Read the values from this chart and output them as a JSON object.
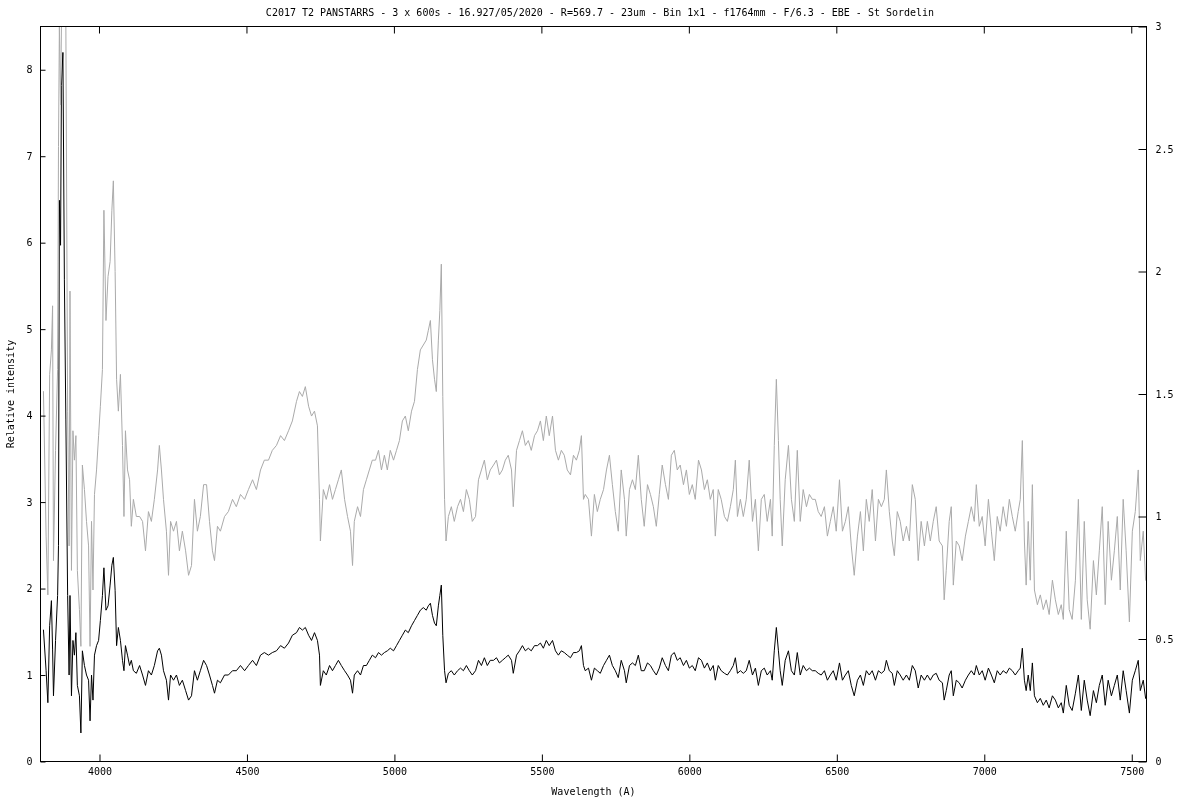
{
  "chart_data": {
    "type": "line",
    "title": "C2017 T2 PANSTARRS - 3 x 600s - 16.927/05/2020 - R=569.7 - 23um - Bin 1x1 - f1764mm - F/6.3 - EBE - St Sordelin",
    "xlabel": "Wavelength (A)",
    "ylabel": "Relative intensity",
    "xlim": [
      3800,
      7550
    ],
    "xticks": [
      4000,
      4500,
      5000,
      5500,
      6000,
      6500,
      7000,
      7500
    ],
    "ylim": [
      0,
      8.5
    ],
    "yticks": [
      0,
      1,
      2,
      3,
      4,
      5,
      6,
      7,
      8
    ],
    "y2lim": [
      0,
      3
    ],
    "y2ticks": [
      0,
      0.5,
      1,
      1.5,
      2,
      2.5,
      3
    ],
    "x": [
      3810,
      3819,
      3825,
      3831,
      3837,
      3841,
      3844,
      3851,
      3858,
      3861,
      3864,
      3868,
      3871,
      3876,
      3881,
      3886,
      3892,
      3897,
      3900,
      3905,
      3910,
      3915,
      3920,
      3925,
      3932,
      3937,
      3942,
      3949,
      3956,
      3963,
      3968,
      3973,
      3978,
      3983,
      3990,
      3997,
      4003,
      4010,
      4015,
      4022,
      4029,
      4036,
      4042,
      4047,
      4053,
      4058,
      4064,
      4071,
      4078,
      4083,
      4088,
      4095,
      4102,
      4108,
      4115,
      4125,
      4136,
      4146,
      4156,
      4166,
      4176,
      4186,
      4197,
      4203,
      4210,
      4217,
      4227,
      4234,
      4241,
      4251,
      4261,
      4271,
      4281,
      4292,
      4302,
      4312,
      4322,
      4332,
      4342,
      4353,
      4363,
      4373,
      4383,
      4390,
      4400,
      4410,
      4424,
      4437,
      4451,
      4464,
      4478,
      4492,
      4505,
      4519,
      4532,
      4546,
      4559,
      4573,
      4586,
      4600,
      4614,
      4627,
      4641,
      4654,
      4668,
      4678,
      4688,
      4698,
      4709,
      4719,
      4729,
      4739,
      4746,
      4749,
      4759,
      4769,
      4780,
      4790,
      4800,
      4810,
      4820,
      4831,
      4841,
      4851,
      4858,
      4864,
      4875,
      4885,
      4895,
      4905,
      4915,
      4925,
      4936,
      4946,
      4956,
      4966,
      4976,
      4986,
      4997,
      5007,
      5017,
      5027,
      5037,
      5047,
      5058,
      5068,
      5078,
      5088,
      5098,
      5108,
      5115,
      5122,
      5129,
      5136,
      5142,
      5149,
      5154,
      5159,
      5164,
      5170,
      5175,
      5183,
      5193,
      5203,
      5214,
      5224,
      5234,
      5244,
      5254,
      5264,
      5275,
      5285,
      5295,
      5305,
      5315,
      5325,
      5336,
      5346,
      5356,
      5366,
      5376,
      5386,
      5397,
      5403,
      5414,
      5424,
      5434,
      5444,
      5454,
      5464,
      5475,
      5485,
      5495,
      5505,
      5515,
      5525,
      5536,
      5546,
      5556,
      5566,
      5576,
      5586,
      5597,
      5607,
      5617,
      5627,
      5634,
      5641,
      5647,
      5658,
      5668,
      5678,
      5688,
      5698,
      5709,
      5719,
      5729,
      5739,
      5749,
      5759,
      5769,
      5780,
      5786,
      5797,
      5807,
      5817,
      5827,
      5837,
      5847,
      5858,
      5868,
      5878,
      5888,
      5898,
      5908,
      5919,
      5929,
      5939,
      5949,
      5959,
      5969,
      5980,
      5990,
      6000,
      6010,
      6020,
      6031,
      6041,
      6051,
      6061,
      6071,
      6081,
      6088,
      6098,
      6108,
      6119,
      6129,
      6139,
      6149,
      6156,
      6163,
      6173,
      6183,
      6193,
      6203,
      6214,
      6224,
      6234,
      6244,
      6254,
      6264,
      6275,
      6281,
      6288,
      6295,
      6302,
      6308,
      6315,
      6325,
      6336,
      6346,
      6356,
      6366,
      6376,
      6386,
      6397,
      6407,
      6417,
      6427,
      6437,
      6447,
      6458,
      6468,
      6478,
      6488,
      6498,
      6509,
      6519,
      6529,
      6539,
      6549,
      6559,
      6570,
      6580,
      6590,
      6600,
      6610,
      6620,
      6631,
      6641,
      6651,
      6661,
      6668,
      6678,
      6688,
      6695,
      6705,
      6715,
      6725,
      6736,
      6746,
      6756,
      6766,
      6776,
      6786,
      6797,
      6807,
      6817,
      6827,
      6837,
      6847,
      6858,
      6864,
      6871,
      6881,
      6888,
      6895,
      6905,
      6915,
      6925,
      6936,
      6946,
      6956,
      6966,
      6973,
      6983,
      6993,
      7003,
      7014,
      7024,
      7034,
      7044,
      7054,
      7064,
      7075,
      7085,
      7095,
      7105,
      7115,
      7122,
      7129,
      7136,
      7142,
      7149,
      7156,
      7163,
      7170,
      7180,
      7190,
      7200,
      7210,
      7220,
      7231,
      7241,
      7251,
      7261,
      7268,
      7278,
      7288,
      7298,
      7309,
      7319,
      7329,
      7339,
      7349,
      7359,
      7370,
      7380,
      7390,
      7400,
      7410,
      7420,
      7431,
      7441,
      7451,
      7461,
      7471,
      7481,
      7492,
      7502,
      7512,
      7522,
      7529,
      7539,
      7547
    ],
    "series": [
      {
        "color": "#000000",
        "values": [
          1.52,
          1.05,
          0.68,
          1.57,
          1.86,
          1.3,
          0.76,
          1.4,
          1.92,
          2.5,
          6.49,
          5.97,
          7.82,
          8.2,
          5.57,
          3.95,
          1.92,
          1.0,
          1.92,
          0.76,
          1.4,
          1.23,
          1.49,
          0.88,
          0.76,
          0.33,
          1.28,
          1.11,
          1.0,
          0.94,
          0.47,
          1.0,
          0.71,
          1.23,
          1.34,
          1.4,
          1.63,
          1.92,
          2.24,
          1.75,
          1.8,
          2.04,
          2.27,
          2.36,
          1.98,
          1.34,
          1.55,
          1.4,
          1.17,
          1.05,
          1.34,
          1.23,
          1.11,
          1.17,
          1.05,
          1.02,
          1.11,
          1.0,
          0.88,
          1.05,
          1.0,
          1.11,
          1.28,
          1.31,
          1.23,
          1.05,
          0.94,
          0.71,
          1.0,
          0.94,
          1.0,
          0.88,
          0.94,
          0.82,
          0.71,
          0.76,
          1.05,
          0.94,
          1.05,
          1.17,
          1.11,
          1.0,
          0.88,
          0.79,
          0.94,
          0.91,
          1.0,
          1.0,
          1.05,
          1.05,
          1.11,
          1.05,
          1.11,
          1.17,
          1.11,
          1.23,
          1.26,
          1.23,
          1.26,
          1.28,
          1.34,
          1.31,
          1.37,
          1.46,
          1.49,
          1.55,
          1.52,
          1.55,
          1.46,
          1.4,
          1.49,
          1.4,
          1.23,
          0.88,
          1.05,
          1.0,
          1.11,
          1.05,
          1.11,
          1.17,
          1.11,
          1.05,
          1.0,
          0.94,
          0.79,
          1.0,
          1.05,
          1.0,
          1.11,
          1.11,
          1.17,
          1.23,
          1.2,
          1.26,
          1.23,
          1.26,
          1.28,
          1.31,
          1.28,
          1.34,
          1.4,
          1.46,
          1.52,
          1.49,
          1.57,
          1.63,
          1.69,
          1.75,
          1.78,
          1.75,
          1.8,
          1.83,
          1.69,
          1.6,
          1.57,
          1.8,
          1.92,
          2.04,
          1.46,
          1.05,
          0.91,
          1.02,
          1.05,
          1.0,
          1.05,
          1.08,
          1.05,
          1.11,
          1.05,
          1.0,
          1.05,
          1.17,
          1.11,
          1.2,
          1.11,
          1.17,
          1.17,
          1.2,
          1.14,
          1.17,
          1.2,
          1.23,
          1.17,
          1.02,
          1.23,
          1.28,
          1.34,
          1.28,
          1.31,
          1.28,
          1.34,
          1.34,
          1.37,
          1.31,
          1.4,
          1.34,
          1.4,
          1.28,
          1.23,
          1.28,
          1.26,
          1.23,
          1.2,
          1.26,
          1.26,
          1.28,
          1.34,
          1.11,
          1.05,
          1.08,
          0.94,
          1.08,
          1.05,
          1.02,
          1.11,
          1.17,
          1.23,
          1.11,
          1.05,
          0.97,
          1.17,
          1.05,
          0.91,
          1.11,
          1.14,
          1.11,
          1.23,
          1.05,
          1.05,
          1.14,
          1.11,
          1.05,
          1.0,
          1.08,
          1.2,
          1.11,
          1.05,
          1.23,
          1.26,
          1.17,
          1.2,
          1.11,
          1.17,
          1.08,
          1.11,
          1.05,
          1.2,
          1.17,
          1.08,
          1.14,
          1.05,
          1.11,
          0.94,
          1.11,
          1.05,
          1.02,
          1.0,
          1.05,
          1.11,
          1.2,
          1.02,
          1.05,
          1.02,
          1.05,
          1.17,
          1.0,
          1.08,
          0.88,
          1.05,
          1.08,
          1.0,
          1.05,
          0.94,
          1.28,
          1.55,
          1.28,
          1.05,
          0.88,
          1.17,
          1.28,
          1.05,
          1.0,
          1.26,
          1.0,
          1.11,
          1.05,
          1.08,
          1.05,
          1.05,
          1.02,
          1.0,
          1.05,
          0.94,
          1.0,
          1.05,
          0.94,
          1.14,
          0.94,
          1.0,
          1.05,
          0.88,
          0.76,
          0.94,
          1.0,
          0.88,
          1.05,
          1.0,
          1.05,
          0.94,
          1.05,
          1.02,
          1.05,
          1.17,
          1.05,
          1.02,
          0.88,
          1.05,
          1.0,
          0.94,
          1.0,
          0.94,
          1.11,
          1.05,
          0.85,
          1.0,
          0.94,
          1.0,
          0.94,
          1.0,
          1.02,
          0.94,
          0.91,
          0.71,
          0.82,
          1.0,
          1.05,
          0.76,
          0.94,
          0.91,
          0.85,
          0.94,
          1.0,
          1.05,
          1.0,
          1.11,
          1.0,
          1.05,
          0.94,
          1.08,
          1.0,
          0.91,
          1.05,
          1.0,
          1.05,
          1.02,
          1.08,
          1.05,
          1.0,
          1.05,
          1.08,
          1.31,
          0.94,
          0.82,
          1.0,
          0.82,
          1.14,
          0.76,
          0.68,
          0.73,
          0.65,
          0.71,
          0.62,
          0.76,
          0.71,
          0.62,
          0.68,
          0.56,
          0.88,
          0.65,
          0.59,
          0.79,
          1.0,
          0.59,
          0.94,
          0.71,
          0.53,
          0.82,
          0.68,
          0.88,
          1.0,
          0.65,
          0.94,
          0.76,
          0.88,
          1.0,
          0.71,
          1.05,
          0.82,
          0.56,
          0.94,
          1.05,
          1.17,
          0.82,
          0.94,
          0.73
        ]
      },
      {
        "color": "#aaaaaa",
        "axis": "y2",
        "values": [
          1.51,
          0.92,
          0.68,
          1.58,
          1.68,
          1.86,
          0.82,
          1.27,
          1.6,
          2.51,
          3.0,
          2.68,
          3.0,
          3.0,
          3.0,
          3.0,
          1.43,
          0.88,
          1.92,
          0.78,
          1.35,
          1.23,
          1.33,
          0.78,
          0.62,
          0.47,
          1.21,
          1.11,
          0.98,
          0.88,
          0.47,
          0.98,
          0.7,
          1.09,
          1.19,
          1.33,
          1.45,
          1.6,
          2.25,
          1.8,
          1.98,
          2.04,
          2.25,
          2.37,
          2.0,
          1.56,
          1.43,
          1.58,
          1.29,
          1.0,
          1.35,
          1.19,
          1.15,
          0.96,
          1.07,
          1.0,
          1.0,
          0.98,
          0.86,
          1.02,
          0.98,
          1.07,
          1.19,
          1.29,
          1.19,
          1.07,
          0.94,
          0.76,
          0.98,
          0.94,
          0.98,
          0.86,
          0.94,
          0.86,
          0.76,
          0.8,
          1.07,
          0.94,
          1.0,
          1.13,
          1.13,
          0.98,
          0.86,
          0.82,
          0.96,
          0.94,
          1.0,
          1.02,
          1.07,
          1.04,
          1.09,
          1.07,
          1.11,
          1.15,
          1.11,
          1.19,
          1.23,
          1.23,
          1.27,
          1.29,
          1.33,
          1.31,
          1.35,
          1.39,
          1.47,
          1.51,
          1.49,
          1.53,
          1.45,
          1.41,
          1.43,
          1.37,
          1.07,
          0.9,
          1.11,
          1.07,
          1.13,
          1.07,
          1.11,
          1.15,
          1.19,
          1.07,
          1.0,
          0.94,
          0.8,
          0.98,
          1.04,
          1.0,
          1.11,
          1.15,
          1.19,
          1.23,
          1.23,
          1.27,
          1.19,
          1.25,
          1.19,
          1.27,
          1.23,
          1.27,
          1.31,
          1.39,
          1.41,
          1.35,
          1.43,
          1.47,
          1.6,
          1.68,
          1.7,
          1.72,
          1.76,
          1.8,
          1.64,
          1.56,
          1.51,
          1.72,
          1.84,
          2.03,
          1.49,
          1.07,
          0.9,
          1.0,
          1.04,
          0.98,
          1.04,
          1.07,
          1.02,
          1.11,
          1.07,
          0.98,
          1.0,
          1.15,
          1.19,
          1.23,
          1.15,
          1.19,
          1.21,
          1.23,
          1.17,
          1.19,
          1.23,
          1.25,
          1.19,
          1.04,
          1.27,
          1.31,
          1.35,
          1.29,
          1.31,
          1.27,
          1.33,
          1.35,
          1.39,
          1.31,
          1.41,
          1.33,
          1.41,
          1.27,
          1.23,
          1.27,
          1.25,
          1.19,
          1.17,
          1.25,
          1.23,
          1.27,
          1.33,
          1.07,
          1.09,
          1.07,
          0.92,
          1.09,
          1.02,
          1.07,
          1.11,
          1.19,
          1.25,
          1.13,
          1.02,
          0.94,
          1.19,
          1.07,
          0.92,
          1.11,
          1.15,
          1.11,
          1.25,
          1.07,
          0.96,
          1.13,
          1.09,
          1.04,
          0.96,
          1.09,
          1.21,
          1.13,
          1.07,
          1.25,
          1.27,
          1.19,
          1.21,
          1.13,
          1.19,
          1.09,
          1.13,
          1.07,
          1.23,
          1.19,
          1.11,
          1.15,
          1.07,
          1.11,
          0.92,
          1.11,
          1.07,
          1.0,
          0.98,
          1.04,
          1.11,
          1.23,
          1.0,
          1.07,
          1.0,
          1.07,
          1.23,
          0.98,
          1.07,
          0.86,
          1.07,
          1.09,
          0.98,
          1.07,
          0.92,
          1.29,
          1.56,
          1.31,
          1.07,
          0.88,
          1.15,
          1.29,
          1.07,
          0.98,
          1.27,
          0.98,
          1.11,
          1.04,
          1.09,
          1.07,
          1.07,
          1.02,
          1.0,
          1.04,
          0.92,
          0.98,
          1.04,
          0.94,
          1.15,
          0.94,
          0.98,
          1.04,
          0.88,
          0.76,
          0.92,
          1.02,
          0.86,
          1.07,
          0.98,
          1.11,
          0.9,
          1.07,
          1.04,
          1.07,
          1.19,
          1.02,
          0.9,
          0.84,
          1.02,
          0.98,
          0.9,
          0.96,
          0.9,
          1.13,
          1.07,
          0.82,
          0.98,
          0.88,
          0.98,
          0.9,
          0.98,
          1.04,
          0.9,
          0.88,
          0.66,
          0.78,
          0.98,
          1.04,
          0.72,
          0.9,
          0.88,
          0.82,
          0.92,
          0.98,
          1.04,
          0.98,
          1.13,
          0.96,
          1.0,
          0.88,
          1.07,
          0.94,
          0.82,
          1.0,
          0.94,
          1.04,
          0.96,
          1.07,
          1.0,
          0.94,
          1.02,
          1.07,
          1.31,
          0.9,
          0.72,
          0.98,
          0.74,
          1.13,
          0.7,
          0.64,
          0.68,
          0.62,
          0.66,
          0.6,
          0.74,
          0.66,
          0.6,
          0.64,
          0.58,
          0.94,
          0.62,
          0.58,
          0.74,
          1.07,
          0.58,
          0.98,
          0.66,
          0.54,
          0.82,
          0.68,
          0.86,
          1.04,
          0.64,
          0.98,
          0.74,
          0.86,
          1.0,
          0.7,
          1.07,
          0.86,
          0.57,
          0.94,
          1.02,
          1.19,
          0.82,
          0.94,
          0.74
        ]
      }
    ]
  }
}
